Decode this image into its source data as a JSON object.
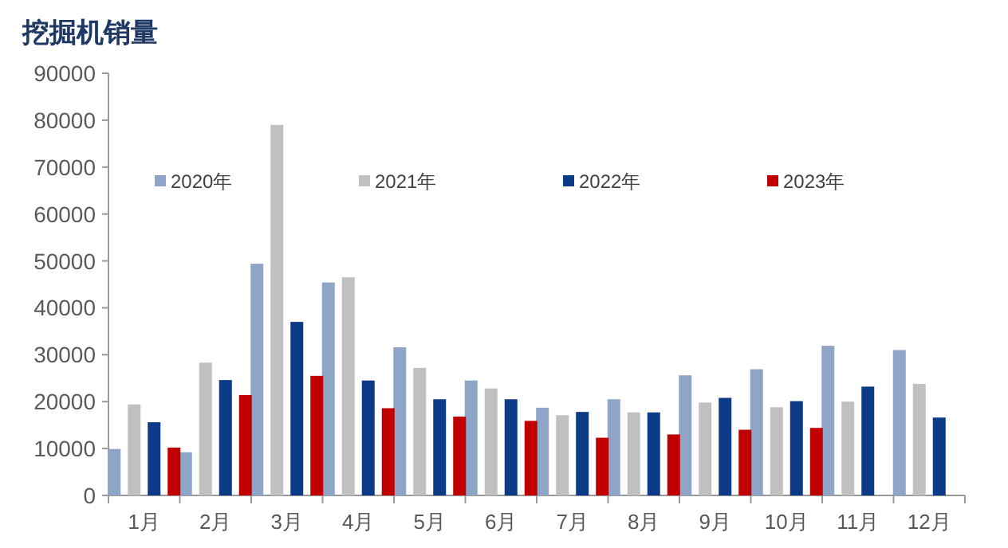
{
  "chart_data": {
    "type": "bar",
    "title": "挖掘机销量",
    "categories": [
      "1月",
      "2月",
      "3月",
      "4月",
      "5月",
      "6月",
      "7月",
      "8月",
      "9月",
      "10月",
      "11月",
      "12月"
    ],
    "series": [
      {
        "name": "2020年",
        "color": "#8ea5c8",
        "values": [
          9900,
          9200,
          49400,
          45400,
          31600,
          24500,
          18700,
          20500,
          25600,
          26900,
          31900,
          31000
        ]
      },
      {
        "name": "2021年",
        "color": "#c0c0c0",
        "values": [
          19400,
          28300,
          79000,
          46500,
          27200,
          22800,
          17100,
          17700,
          19800,
          18800,
          20000,
          23800
        ]
      },
      {
        "name": "2022年",
        "color": "#0b3a86",
        "values": [
          15600,
          24600,
          37000,
          24500,
          20500,
          20500,
          17800,
          17700,
          20800,
          20100,
          23200,
          16600
        ]
      },
      {
        "name": "2023年",
        "color": "#c00000",
        "values": [
          10200,
          21400,
          25500,
          18600,
          16800,
          15900,
          12300,
          13000,
          14000,
          14400,
          null,
          null
        ]
      }
    ],
    "ylim": [
      0,
      90000
    ],
    "yticks": [
      0,
      10000,
      20000,
      30000,
      40000,
      50000,
      60000,
      70000,
      80000,
      90000
    ],
    "grid": false,
    "legend": "top"
  }
}
